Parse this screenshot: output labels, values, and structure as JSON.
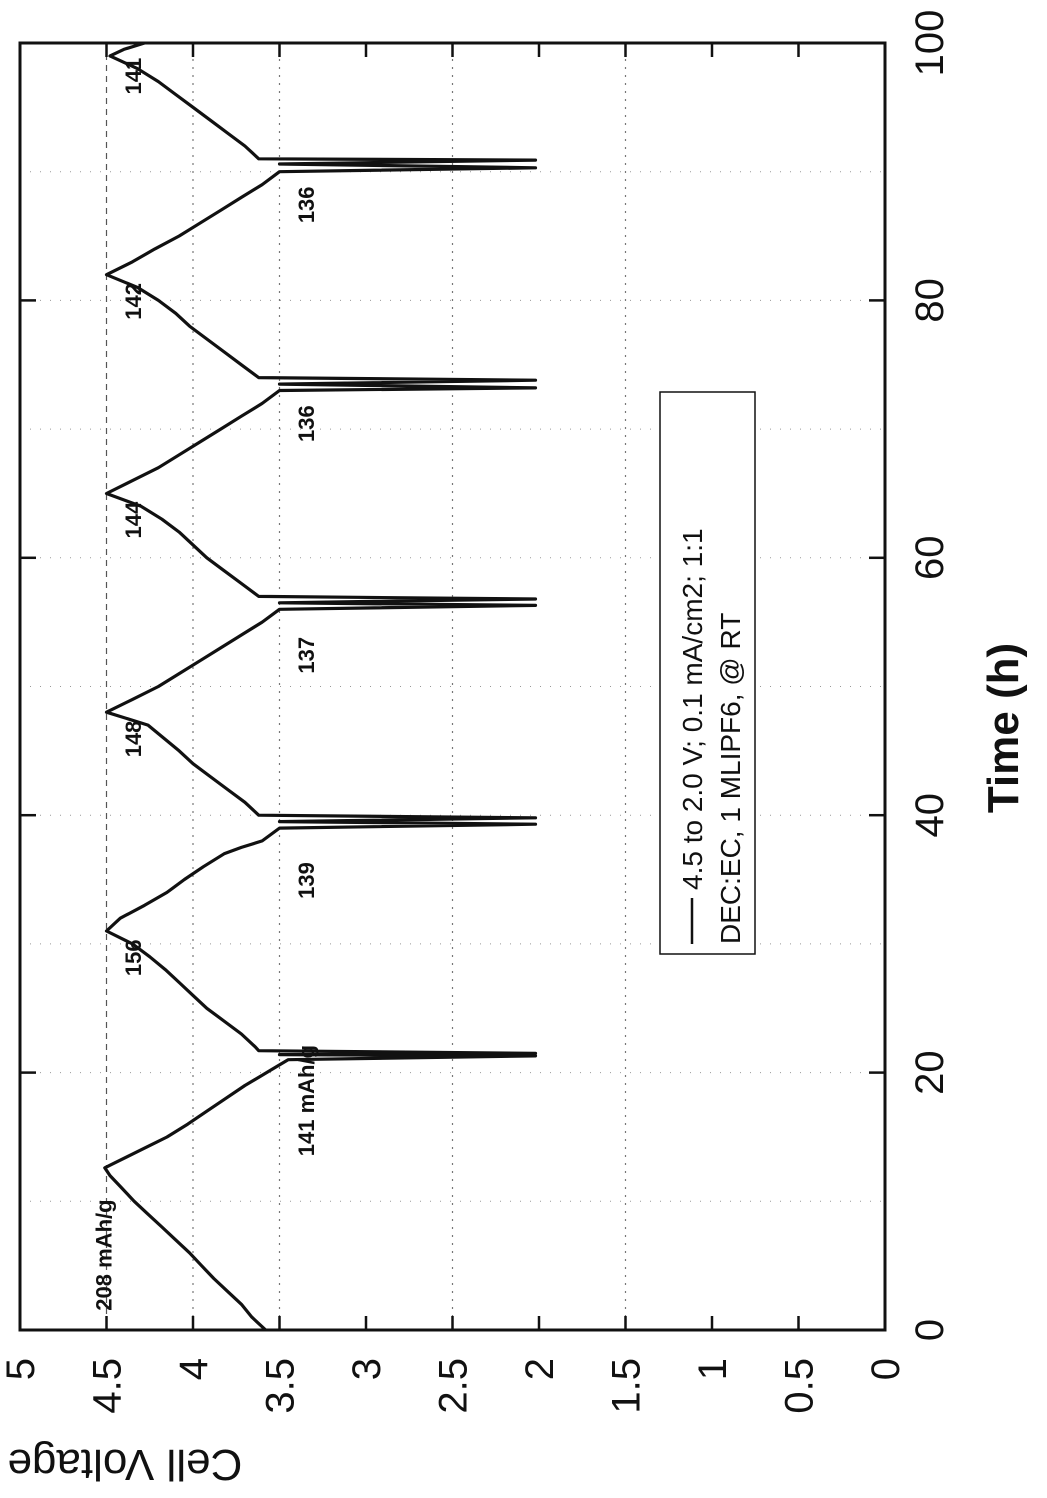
{
  "chart_data": {
    "type": "line",
    "title": "",
    "xlabel": "Time (h)",
    "ylabel": "Cell Voltage vs. Li (V)",
    "xlim": [
      0,
      100
    ],
    "ylim": [
      0,
      5
    ],
    "x_ticks": [
      "0",
      "20",
      "40",
      "60",
      "80",
      "100"
    ],
    "y_ticks": [
      "0",
      "0.5",
      "1",
      "1.5",
      "2",
      "2.5",
      "3",
      "3.5",
      "4",
      "4.5",
      "5"
    ],
    "grid": "dotted horizontal at 1.5, 2.5, 3.5, 4 V; dashed at 4.5 V; dotted vertical at each 10 h",
    "line_color": "#111111",
    "legend": {
      "line1": "4.5 to 2.0 V; 0.1 mA/cm2; 1:1",
      "line2": "DEC:EC, 1 MLIPF6, @ RT",
      "placement": "center"
    },
    "series": [
      {
        "x": [
          0,
          0.5,
          1,
          2,
          3,
          4,
          5,
          6,
          7,
          8,
          9,
          10,
          11,
          12,
          12.6,
          13,
          14,
          15,
          16,
          17,
          18,
          19,
          19.8,
          20.2,
          21,
          21.3,
          21.4,
          21.5,
          21.7,
          22,
          23,
          24,
          25,
          26,
          27,
          28,
          29,
          30,
          31,
          32,
          33,
          34,
          35,
          36,
          37,
          37.5,
          38,
          39,
          39.3,
          39.5,
          39.8,
          40,
          41,
          42,
          43,
          44,
          45,
          46,
          47,
          48,
          49,
          50,
          51,
          52,
          53,
          54,
          55,
          56,
          56.3,
          56.5,
          56.8,
          57,
          58,
          59,
          60,
          61,
          62,
          63,
          64,
          65,
          66,
          67,
          68,
          69,
          70,
          71,
          72,
          73,
          73.2,
          73.5,
          73.8,
          74,
          75,
          76,
          77,
          78,
          79,
          80,
          81,
          82,
          83,
          84,
          85,
          86,
          87,
          88,
          89,
          90,
          90.3,
          90.6,
          90.9,
          91,
          92,
          93,
          94,
          95,
          96,
          97,
          98,
          99,
          99.5,
          100
        ],
        "y": [
          3.58,
          3.62,
          3.66,
          3.72,
          3.8,
          3.88,
          3.95,
          4.02,
          4.1,
          4.18,
          4.26,
          4.34,
          4.41,
          4.48,
          4.51,
          4.45,
          4.3,
          4.15,
          4.03,
          3.92,
          3.81,
          3.7,
          3.6,
          3.55,
          3.45,
          2.02,
          3.5,
          2.02,
          3.62,
          3.64,
          3.72,
          3.82,
          3.92,
          4.0,
          4.08,
          4.16,
          4.25,
          4.35,
          4.5,
          4.42,
          4.28,
          4.15,
          4.05,
          3.94,
          3.82,
          3.72,
          3.6,
          3.5,
          2.02,
          3.5,
          2.02,
          3.62,
          3.7,
          3.8,
          3.9,
          4.0,
          4.08,
          4.17,
          4.26,
          4.5,
          4.35,
          4.2,
          4.08,
          3.96,
          3.84,
          3.72,
          3.6,
          3.5,
          2.02,
          3.5,
          2.02,
          3.62,
          3.72,
          3.82,
          3.92,
          4.0,
          4.08,
          4.18,
          4.3,
          4.5,
          4.35,
          4.2,
          4.08,
          3.96,
          3.84,
          3.72,
          3.6,
          3.5,
          2.02,
          3.5,
          2.02,
          3.62,
          3.72,
          3.82,
          3.92,
          4.02,
          4.1,
          4.2,
          4.32,
          4.5,
          4.35,
          4.22,
          4.08,
          3.96,
          3.84,
          3.72,
          3.6,
          3.5,
          2.02,
          3.5,
          2.02,
          3.62,
          3.7,
          3.8,
          3.9,
          4.0,
          4.1,
          4.2,
          4.32,
          4.48,
          4.4,
          4.28
        ]
      }
    ],
    "annotations": [
      {
        "text": "208 mAh/g",
        "x": 1.5,
        "y": 4.47
      },
      {
        "text": "141 mAh/g",
        "x": 13.5,
        "y": 3.3
      },
      {
        "text": "156",
        "x": 27.5,
        "y": 4.3
      },
      {
        "text": "139",
        "x": 33.5,
        "y": 3.3
      },
      {
        "text": "148",
        "x": 44.5,
        "y": 4.3
      },
      {
        "text": "137",
        "x": 51,
        "y": 3.3
      },
      {
        "text": "144",
        "x": 61.5,
        "y": 4.3
      },
      {
        "text": "136",
        "x": 69,
        "y": 3.3
      },
      {
        "text": "142",
        "x": 78.5,
        "y": 4.3
      },
      {
        "text": "136",
        "x": 86,
        "y": 3.3
      },
      {
        "text": "141",
        "x": 96,
        "y": 4.3
      }
    ]
  }
}
